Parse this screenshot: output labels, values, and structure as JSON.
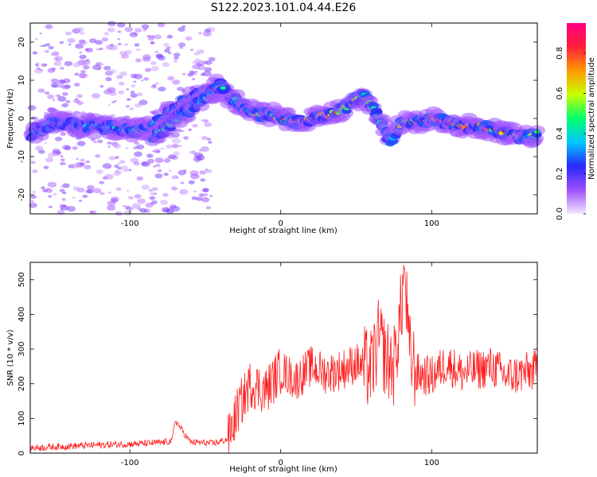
{
  "chart_data": [
    {
      "type": "heatmap",
      "title": "S122.2023.101.04.44.E26",
      "xlabel": "Height of straight line (km)",
      "ylabel": "Frequency (Hz)",
      "xlim": [
        -166,
        170
      ],
      "ylim": [
        -25,
        25
      ],
      "xticks": [
        -100,
        0,
        100
      ],
      "yticks": [
        -20,
        -10,
        0,
        10,
        20
      ],
      "colorbar": {
        "label": "Normalized spectral amplitude",
        "range": [
          0.0,
          0.95
        ],
        "ticks": [
          "0.0",
          "0.2",
          "0.4",
          "0.6",
          "0.8"
        ],
        "colors": [
          "#f2e8ff",
          "#a050ff",
          "#2828ff",
          "#00c8ff",
          "#00ff6a",
          "#c8ff00",
          "#ff9a00",
          "#ff1f3a",
          "#ff0080"
        ]
      },
      "ridge": {
        "x": [
          -166,
          -150,
          -135,
          -120,
          -105,
          -95,
          -85,
          -75,
          -65,
          -55,
          -45,
          -40,
          -35,
          -25,
          -15,
          -5,
          0,
          10,
          20,
          30,
          40,
          50,
          55,
          62,
          68,
          72,
          76,
          80,
          90,
          100,
          110,
          120,
          130,
          140,
          150,
          160,
          170
        ],
        "y": [
          -4,
          -1,
          -2,
          -2,
          -3,
          -3,
          -2,
          1,
          4,
          6,
          8,
          9,
          6,
          3,
          1,
          1,
          0,
          -1,
          0,
          1,
          2,
          5,
          6,
          2,
          -2,
          -6,
          -4,
          -1,
          -1,
          0,
          -1,
          -2,
          -2,
          -3,
          -4,
          -5,
          -4
        ],
        "amplitude": [
          0.3,
          0.3,
          0.3,
          0.35,
          0.4,
          0.45,
          0.4,
          0.35,
          0.4,
          0.4,
          0.45,
          0.45,
          0.4,
          0.45,
          0.55,
          0.6,
          0.7,
          0.75,
          0.7,
          0.75,
          0.7,
          0.65,
          0.6,
          0.55,
          0.45,
          0.3,
          0.45,
          0.6,
          0.75,
          0.85,
          0.85,
          0.8,
          0.8,
          0.75,
          0.7,
          0.6,
          0.5
        ]
      },
      "secondary_ridge": {
        "x": [
          -85,
          -75,
          -65,
          -55,
          -45,
          -38
        ],
        "y": [
          -5,
          -2,
          1,
          4,
          7,
          8
        ]
      }
    },
    {
      "type": "line",
      "xlabel": "Height of straight line (km)",
      "ylabel": "SNR (10 * v/v)",
      "xlim": [
        -166,
        170
      ],
      "ylim": [
        0,
        550
      ],
      "xticks": [
        -100,
        0,
        100
      ],
      "yticks": [
        0,
        100,
        200,
        300,
        400,
        500
      ],
      "color": "#ff2020",
      "series": [
        {
          "x": [
            -166,
            -150,
            -130,
            -110,
            -90,
            -80,
            -72,
            -70,
            -60,
            -45,
            -35,
            -28,
            -20,
            -10,
            0,
            10,
            20,
            30,
            40,
            50,
            60,
            65,
            70,
            75,
            80,
            82,
            85,
            90,
            100,
            110,
            120,
            130,
            140,
            150,
            160,
            170
          ],
          "y": [
            15,
            18,
            22,
            25,
            28,
            30,
            35,
            95,
            32,
            28,
            40,
            130,
            200,
            180,
            240,
            210,
            250,
            230,
            240,
            260,
            240,
            330,
            270,
            250,
            420,
            545,
            290,
            230,
            220,
            260,
            230,
            240,
            250,
            220,
            230,
            240
          ]
        }
      ]
    }
  ]
}
